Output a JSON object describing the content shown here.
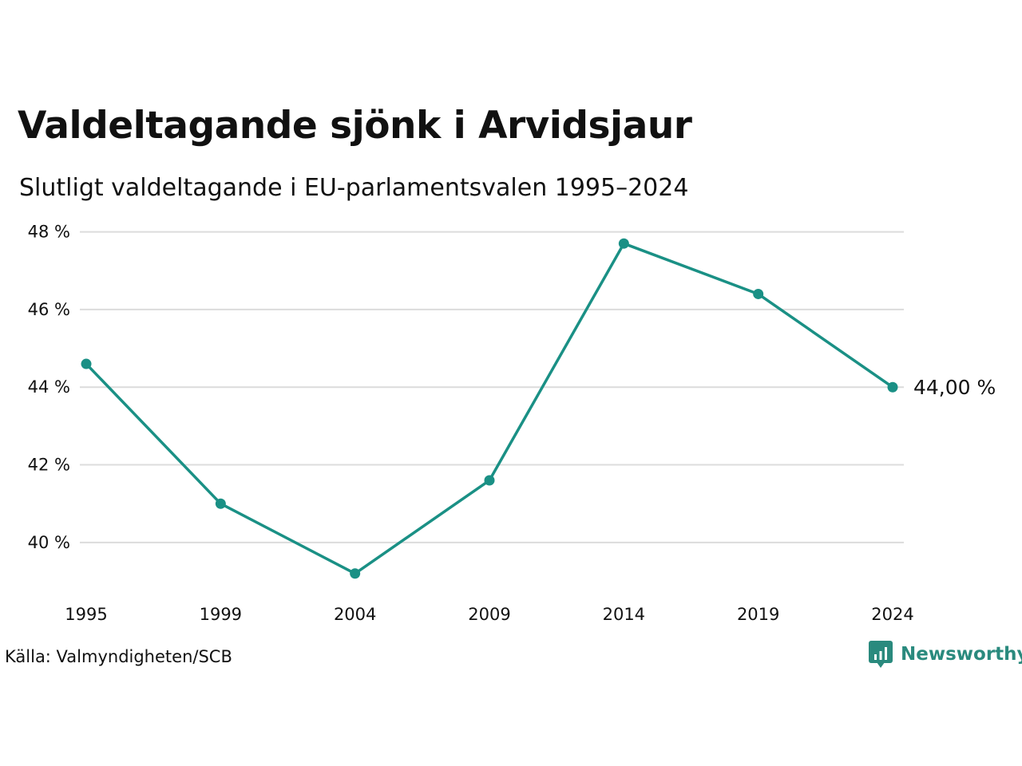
{
  "colors": {
    "line": "#1a9085",
    "grid": "#dcdcdc",
    "text": "#111111",
    "brand": "#2a8a7e"
  },
  "header": {
    "title": "Valdeltagande sjönk i Arvidsjaur",
    "subtitle": "Slutligt valdeltagande i EU-parlamentsvalen 1995–2024"
  },
  "chart_data": {
    "type": "line",
    "x": [
      "1995",
      "1999",
      "2004",
      "2009",
      "2014",
      "2019",
      "2024"
    ],
    "series": [
      {
        "values": [
          44.6,
          41.0,
          39.2,
          41.6,
          47.7,
          46.4,
          44.0
        ]
      }
    ],
    "yticks": [
      40,
      42,
      44,
      46,
      48
    ],
    "ytick_labels": [
      "40 %",
      "42 %",
      "44 %",
      "46 %",
      "48 %"
    ],
    "ylim": [
      38.6,
      48.3
    ],
    "grid": true,
    "end_label": "44,00 %"
  },
  "footer": {
    "source": "Källa: Valmyndigheten/SCB",
    "brand": "Newsworthy",
    "brand_icon": "newsworthy-logo-icon"
  }
}
